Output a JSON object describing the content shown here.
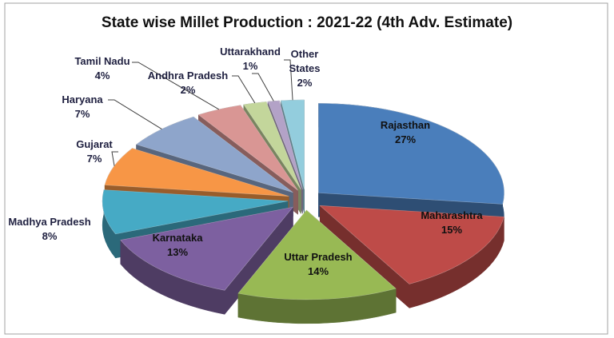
{
  "chart_data": {
    "type": "pie",
    "title": "State wise  Millet Production : 2021-22 (4th Adv. Estimate)",
    "categories": [
      "Rajasthan",
      "Maharashtra",
      "Uttar Pradesh",
      "Karnataka",
      "Madhya Pradesh",
      "Gujarat",
      "Haryana",
      "Tamil Nadu",
      "Andhra Pradesh",
      "Uttarakhand",
      "Other States"
    ],
    "values": [
      27,
      15,
      14,
      13,
      8,
      7,
      7,
      4,
      2,
      1,
      2
    ],
    "value_labels": [
      "27%",
      "15%",
      "14%",
      "13%",
      "8%",
      "7%",
      "7%",
      "4%",
      "2%",
      "1%",
      "2%"
    ],
    "colors": [
      "#4a7ebb",
      "#be4b48",
      "#98b954",
      "#7d60a0",
      "#46aac5",
      "#f79646",
      "#8ea5cb",
      "#d99694",
      "#c3d69b",
      "#b3a2c7",
      "#93cddd"
    ]
  }
}
